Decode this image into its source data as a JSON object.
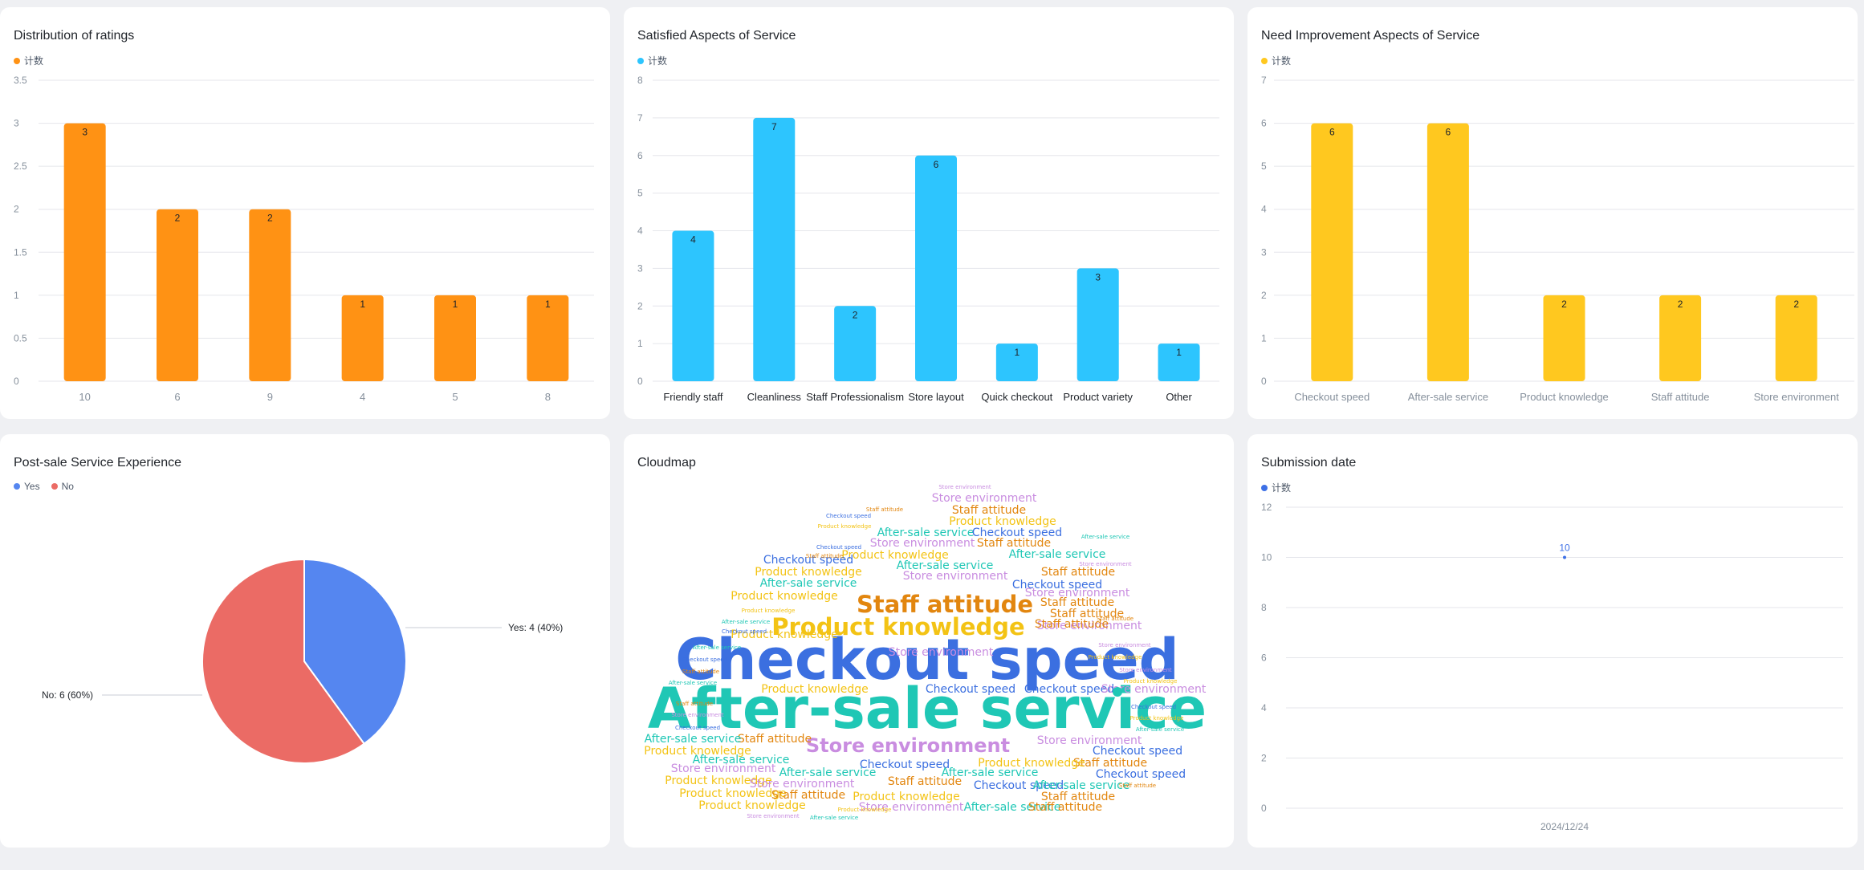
{
  "cards": {
    "ratings": {
      "title": "Distribution of ratings",
      "legend": "计数",
      "color": "#ff9214",
      "chart_data": {
        "type": "bar",
        "categories": [
          "10",
          "6",
          "9",
          "4",
          "5",
          "8"
        ],
        "values": [
          3,
          2,
          2,
          1,
          1,
          1
        ],
        "ylim": [
          0,
          3.5
        ],
        "yticks": [
          "0",
          "0.5",
          "1",
          "1.5",
          "2",
          "2.5",
          "3",
          "3.5"
        ],
        "grid": true,
        "legend_position": "top-left"
      }
    },
    "satisfied": {
      "title": "Satisfied Aspects of Service",
      "legend": "计数",
      "color": "#2dc5fe",
      "chart_data": {
        "type": "bar",
        "categories": [
          "Friendly staff",
          "Cleanliness",
          "Staff Professionalism",
          "Store layout",
          "Quick checkout",
          "Product variety",
          "Other"
        ],
        "values": [
          4,
          7,
          2,
          6,
          1,
          3,
          1
        ],
        "ylim": [
          0,
          8
        ],
        "yticks": [
          "0",
          "1",
          "2",
          "3",
          "4",
          "5",
          "6",
          "7",
          "8"
        ],
        "grid": true,
        "legend_position": "top-left"
      }
    },
    "improvement": {
      "title": "Need Improvement Aspects of Service",
      "legend": "计数",
      "color": "#ffc81f",
      "chart_data": {
        "type": "bar",
        "categories": [
          "Checkout speed",
          "After-sale service",
          "Product knowledge",
          "Staff attitude",
          "Store environment"
        ],
        "values": [
          6,
          6,
          2,
          2,
          2
        ],
        "ylim": [
          0,
          7
        ],
        "yticks": [
          "0",
          "1",
          "2",
          "3",
          "4",
          "5",
          "6",
          "7"
        ],
        "grid": true,
        "legend_position": "top-left"
      }
    },
    "postsale": {
      "title": "Post-sale Service Experience",
      "legend_yes": "Yes",
      "legend_no": "No",
      "color_yes": "#5586f0",
      "color_no": "#eb6b65",
      "label_yes": "Yes: 4 (40%)",
      "label_no": "No: 6 (60%)",
      "chart_data": {
        "type": "pie",
        "slices": [
          {
            "name": "Yes",
            "value": 4,
            "percent": 40
          },
          {
            "name": "No",
            "value": 6,
            "percent": 60
          }
        ]
      }
    },
    "cloudmap": {
      "title": "Cloudmap",
      "big_words": [
        "Checkout speed",
        "After-sale service",
        "Staff attitude",
        "Product knowledge",
        "Store environment"
      ],
      "colors": {
        "Checkout speed": "#3b6fe0",
        "After-sale service": "#1fc7b5",
        "Staff attitude": "#e2860f",
        "Product knowledge": "#f3c315",
        "Store environment": "#c98de0"
      }
    },
    "submission": {
      "title": "Submission date",
      "legend": "计数",
      "color": "#3d70e6",
      "chart_data": {
        "type": "line",
        "x": [
          "2024/12/24"
        ],
        "values": [
          10
        ],
        "ylim": [
          0,
          12
        ],
        "yticks": [
          "0",
          "2",
          "4",
          "6",
          "8",
          "10",
          "12"
        ],
        "grid": true,
        "legend_position": "top-left"
      }
    }
  }
}
